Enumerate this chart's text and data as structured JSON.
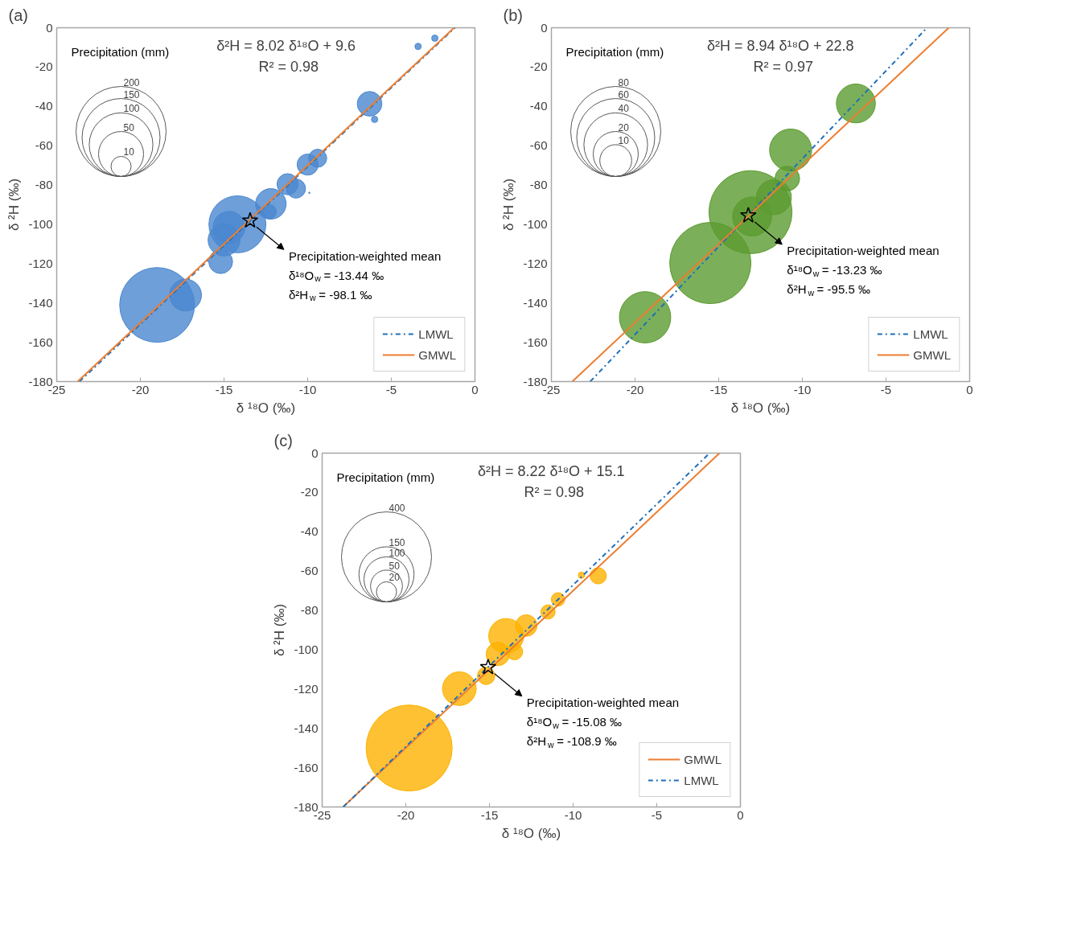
{
  "chart_data": [
    {
      "type": "bubble",
      "title": "(a)",
      "xlabel": "δ ¹⁸O (‰)",
      "ylabel": "δ ²H (‰)",
      "legend_title": "Precipitation (mm)",
      "size_legend": [
        200,
        150,
        100,
        50,
        10
      ],
      "xlim": [
        -25,
        0
      ],
      "ylim": [
        -180,
        0
      ],
      "xticks": [
        -25,
        -20,
        -15,
        -10,
        -5,
        0
      ],
      "yticks": [
        -180,
        -160,
        -140,
        -120,
        -100,
        -80,
        -60,
        -40,
        -20,
        0
      ],
      "legend": "bottom right",
      "series": [
        {
          "color": "#4a87cf",
          "x": [
            -19.0,
            -14.2,
            -15.0,
            -14.7,
            -17.3,
            -12.2,
            -6.3,
            -15.2,
            -10.0,
            -11.2,
            -10.7,
            -9.4,
            -12.3,
            -6.0,
            -3.4,
            -2.4,
            -9.9
          ],
          "values": [
            -141,
            -100,
            -108,
            -101.5,
            -136,
            -89.6,
            -38.7,
            -119,
            -69.6,
            -79.6,
            -81.8,
            -66.4,
            -93.6,
            -46.6,
            -9.5,
            -5.3,
            -84
          ],
          "sizes": [
            138,
            80,
            25,
            25,
            25,
            23,
            15,
            14,
            11,
            11,
            9,
            8,
            5,
            1,
            1,
            1,
            0.05
          ]
        },
        {
          "type": "line",
          "name": "LMWL",
          "color": "#1f6fb8",
          "line_style": "dashdot",
          "x": [
            -23.64,
            -1.2
          ],
          "values": [
            -180,
            0
          ]
        },
        {
          "type": "line",
          "name": "GMWL",
          "color": "#ed7d31",
          "line_style": "solid",
          "x": [
            -23.75,
            -1.25
          ],
          "values": [
            -180,
            0
          ]
        },
        {
          "type": "scatter",
          "marker": "star",
          "color": "#000000",
          "x": [
            -13.44
          ],
          "values": [
            -98.1
          ]
        }
      ],
      "annotations": [
        "δ²H = 8.02 δ¹⁸O + 9.6",
        "R² = 0.98",
        "Precipitation-weighted mean",
        "δ¹⁸O$_{w}$ = -13.44 ‰",
        "δ²H$_{w}$ = -98.1 ‰"
      ]
    },
    {
      "type": "bubble",
      "title": "(b)",
      "xlabel": "δ ¹⁸O (‰)",
      "ylabel": "δ ²H (‰)",
      "legend_title": "Precipitation (mm)",
      "size_legend": [
        80,
        60,
        40,
        20,
        10
      ],
      "xlim": [
        -25,
        0
      ],
      "ylim": [
        -180,
        0
      ],
      "xticks": [
        -25,
        -20,
        -15,
        -10,
        -5,
        0
      ],
      "yticks": [
        -180,
        -160,
        -140,
        -120,
        -100,
        -80,
        -60,
        -40,
        -20,
        0
      ],
      "legend": "bottom right",
      "series": [
        {
          "color": "#5b9b2f",
          "x": [
            -13.1,
            -15.5,
            -19.4,
            -10.7,
            -6.8,
            -13.0,
            -11.7,
            -10.9
          ],
          "values": [
            -93.8,
            -119.7,
            -147.3,
            -62.2,
            -38.5,
            -96,
            -86.2,
            -76.7
          ],
          "sizes": [
            68,
            65,
            26,
            17.5,
            15,
            15,
            12,
            6
          ]
        },
        {
          "type": "line",
          "name": "LMWL",
          "color": "#1f6fb8",
          "line_style": "dashdot",
          "x": [
            -22.68,
            -2.55
          ],
          "values": [
            -180,
            0
          ]
        },
        {
          "type": "line",
          "name": "GMWL",
          "color": "#ed7d31",
          "line_style": "solid",
          "x": [
            -23.75,
            -1.25
          ],
          "values": [
            -180,
            0
          ]
        },
        {
          "type": "scatter",
          "marker": "star",
          "color": "#000000",
          "x": [
            -13.23
          ],
          "values": [
            -95.5
          ]
        }
      ],
      "annotations": [
        "δ²H = 8.94 δ¹⁸O + 22.8",
        "R² = 0.97",
        "Precipitation-weighted mean",
        "δ¹⁸O$_{w}$ = -13.23 ‰",
        "δ²H$_{w}$ = -95.5 ‰"
      ]
    },
    {
      "type": "bubble",
      "title": "(c)",
      "xlabel": "δ ¹⁸O (‰)",
      "ylabel": "δ ²H (‰)",
      "legend_title": "Precipitation (mm)",
      "size_legend": [
        400,
        150,
        100,
        50,
        20
      ],
      "xlim": [
        -25,
        0
      ],
      "ylim": [
        -180,
        0
      ],
      "xticks": [
        -25,
        -20,
        -15,
        -10,
        -5,
        0
      ],
      "yticks": [
        -180,
        -160,
        -140,
        -120,
        -100,
        -80,
        -60,
        -40,
        -20,
        0
      ],
      "legend": "bottom right",
      "series": [
        {
          "color": "#fdb100",
          "x": [
            -19.8,
            -14.0,
            -16.8,
            -14.5,
            -12.8,
            -15.2,
            -8.5,
            -13.5,
            -11.5,
            -10.9,
            -9.5
          ],
          "values": [
            -150,
            -93,
            -119.8,
            -102.2,
            -87.7,
            -113.3,
            -62.4,
            -101,
            -80.8,
            -74.4,
            -62.1
          ],
          "sizes": [
            365,
            60,
            56,
            27,
            23,
            15,
            13,
            13,
            10,
            9,
            2
          ]
        },
        {
          "type": "line",
          "name": "GMWL",
          "color": "#ed7d31",
          "line_style": "solid",
          "x": [
            -23.75,
            -1.25
          ],
          "values": [
            -180,
            0
          ]
        },
        {
          "type": "line",
          "name": "LMWL",
          "color": "#1f6fb8",
          "line_style": "dashdot",
          "x": [
            -23.74,
            -1.84
          ],
          "values": [
            -180,
            0
          ]
        },
        {
          "type": "scatter",
          "marker": "star",
          "color": "#000000",
          "x": [
            -15.08
          ],
          "values": [
            -108.9
          ]
        }
      ],
      "annotations": [
        "δ²H = 8.22 δ¹⁸O + 15.1",
        "R² = 0.98",
        "Precipitation-weighted mean",
        "δ¹⁸O$_{w}$ = -15.08 ‰",
        "δ²H$_{w}$ = -108.9 ‰"
      ]
    }
  ]
}
